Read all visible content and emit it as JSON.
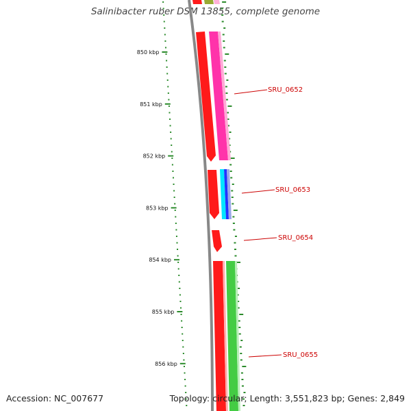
{
  "title": "Salinibacter ruber DSM 13855, complete genome",
  "footer": {
    "accession": "Accession: NC_007677",
    "info": "Topology: circular; Length: 3,551,823 bp; Genes: 2,849"
  },
  "colors": {
    "backbone": "#888888",
    "gc_skew": "#2a8a2a",
    "label_line": "#cc0000",
    "cds_forward": "#ff1a1a",
    "cds_pink": "#ff33aa",
    "cds_green": "#44cc44",
    "cds_cyan": "#00e5ff",
    "cds_blue": "#2233ff",
    "cds_olive": "#99aa33"
  },
  "axis": {
    "ticks": [
      {
        "label": "850 kbp",
        "value": 850
      },
      {
        "label": "851 kbp",
        "value": 851
      },
      {
        "label": "852 kbp",
        "value": 852
      },
      {
        "label": "853 kbp",
        "value": 853
      },
      {
        "label": "854 kbp",
        "value": 854
      },
      {
        "label": "855 kbp",
        "value": 855
      },
      {
        "label": "856 kbp",
        "value": 856
      }
    ]
  },
  "gene_labels": [
    {
      "label": "SRU_0652"
    },
    {
      "label": "SRU_0653"
    },
    {
      "label": "SRU_0654"
    },
    {
      "label": "SRU_0655"
    }
  ]
}
